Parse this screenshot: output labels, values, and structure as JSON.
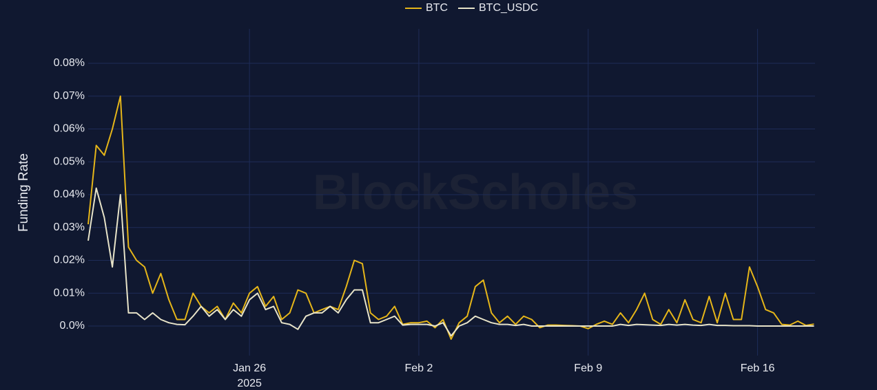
{
  "chart_data": {
    "type": "line",
    "y_label": "Funding Rate",
    "watermark": "BlockScholes",
    "x_year_label": "2025",
    "x": [
      "2025-01-19T08:00",
      "2025-01-19T16:00",
      "2025-01-20T00:00",
      "2025-01-20T08:00",
      "2025-01-20T16:00",
      "2025-01-21T00:00",
      "2025-01-21T08:00",
      "2025-01-21T16:00",
      "2025-01-22T00:00",
      "2025-01-22T08:00",
      "2025-01-22T16:00",
      "2025-01-23T00:00",
      "2025-01-23T08:00",
      "2025-01-23T16:00",
      "2025-01-24T00:00",
      "2025-01-24T08:00",
      "2025-01-24T16:00",
      "2025-01-25T00:00",
      "2025-01-25T08:00",
      "2025-01-25T16:00",
      "2025-01-26T00:00",
      "2025-01-26T08:00",
      "2025-01-26T16:00",
      "2025-01-27T00:00",
      "2025-01-27T08:00",
      "2025-01-27T16:00",
      "2025-01-28T00:00",
      "2025-01-28T08:00",
      "2025-01-28T16:00",
      "2025-01-29T00:00",
      "2025-01-29T08:00",
      "2025-01-29T16:00",
      "2025-01-30T00:00",
      "2025-01-30T08:00",
      "2025-01-30T16:00",
      "2025-01-31T00:00",
      "2025-01-31T08:00",
      "2025-01-31T16:00",
      "2025-02-01T00:00",
      "2025-02-01T08:00",
      "2025-02-01T16:00",
      "2025-02-02T00:00",
      "2025-02-02T08:00",
      "2025-02-02T16:00",
      "2025-02-03T00:00",
      "2025-02-03T08:00",
      "2025-02-03T16:00",
      "2025-02-04T00:00",
      "2025-02-04T08:00",
      "2025-02-04T16:00",
      "2025-02-05T00:00",
      "2025-02-05T08:00",
      "2025-02-05T16:00",
      "2025-02-06T00:00",
      "2025-02-06T08:00",
      "2025-02-06T16:00",
      "2025-02-07T00:00",
      "2025-02-07T08:00",
      "2025-02-07T16:00",
      "2025-02-08T00:00",
      "2025-02-08T08:00",
      "2025-02-08T16:00",
      "2025-02-09T00:00",
      "2025-02-09T08:00",
      "2025-02-09T16:00",
      "2025-02-10T00:00",
      "2025-02-10T08:00",
      "2025-02-10T16:00",
      "2025-02-11T00:00",
      "2025-02-11T08:00",
      "2025-02-11T16:00",
      "2025-02-12T00:00",
      "2025-02-12T08:00",
      "2025-02-12T16:00",
      "2025-02-13T00:00",
      "2025-02-13T08:00",
      "2025-02-13T16:00",
      "2025-02-14T00:00",
      "2025-02-14T08:00",
      "2025-02-14T16:00",
      "2025-02-15T00:00",
      "2025-02-15T08:00",
      "2025-02-15T16:00",
      "2025-02-16T00:00",
      "2025-02-16T08:00",
      "2025-02-16T16:00",
      "2025-02-17T00:00",
      "2025-02-17T08:00",
      "2025-02-17T16:00",
      "2025-02-18T00:00",
      "2025-02-18T08:00"
    ],
    "series": [
      {
        "name": "BTC",
        "color": "#e6b619",
        "values": [
          0.031,
          0.055,
          0.052,
          0.06,
          0.07,
          0.024,
          0.02,
          0.018,
          0.01,
          0.016,
          0.008,
          0.002,
          0.002,
          0.01,
          0.006,
          0.004,
          0.006,
          0.002,
          0.007,
          0.004,
          0.01,
          0.012,
          0.006,
          0.009,
          0.002,
          0.004,
          0.011,
          0.01,
          0.004,
          0.005,
          0.006,
          0.005,
          0.012,
          0.02,
          0.019,
          0.004,
          0.002,
          0.003,
          0.006,
          0.0005,
          0.001,
          0.001,
          0.0015,
          -0.0005,
          0.002,
          -0.004,
          0.001,
          0.003,
          0.012,
          0.014,
          0.004,
          0.001,
          0.003,
          0.0005,
          0.003,
          0.002,
          -0.0005,
          0.0003,
          0.0003,
          0.0002,
          0.0001,
          0,
          -0.0008,
          0.0005,
          0.0015,
          0.0005,
          0.004,
          0.001,
          0.005,
          0.01,
          0.002,
          0.0005,
          0.005,
          0.001,
          0.008,
          0.002,
          0.001,
          0.009,
          0.001,
          0.01,
          0.002,
          0.002,
          0.018,
          0.012,
          0.005,
          0.004,
          0.0005,
          0.0003,
          0.0015,
          0.0002,
          0.0006
        ]
      },
      {
        "name": "BTC_USDC",
        "color": "#e8e4c9",
        "values": [
          0.026,
          0.042,
          0.033,
          0.018,
          0.04,
          0.004,
          0.004,
          0.002,
          0.004,
          0.002,
          0.001,
          0.0005,
          0.0004,
          0.003,
          0.006,
          0.003,
          0.005,
          0.002,
          0.005,
          0.003,
          0.008,
          0.01,
          0.005,
          0.006,
          0.001,
          0.0005,
          -0.001,
          0.003,
          0.004,
          0.004,
          0.006,
          0.004,
          0.008,
          0.011,
          0.011,
          0.001,
          0.001,
          0.002,
          0.003,
          0.0003,
          0.0005,
          0.0005,
          0.0005,
          0,
          0.001,
          -0.003,
          0,
          0.001,
          0.003,
          0.002,
          0.001,
          0.0005,
          0.0005,
          0.0002,
          0.0005,
          0,
          0,
          0,
          0,
          0,
          0,
          0,
          0,
          0,
          0,
          0,
          0.0005,
          0.0002,
          0.0005,
          0.0004,
          0.0003,
          0.0002,
          0.0005,
          0.0003,
          0.0005,
          0.0003,
          0.0002,
          0.0005,
          0.0002,
          0.0002,
          0.0001,
          0.0001,
          0.0001,
          0,
          0,
          0,
          0,
          0,
          0,
          0,
          0
        ]
      }
    ],
    "xlim": [
      "2025-01-19T08:00",
      "2025-02-18T09:00"
    ],
    "xticks": [
      {
        "value": "2025-01-26",
        "label": "Jan 26"
      },
      {
        "value": "2025-02-02",
        "label": "Feb 2"
      },
      {
        "value": "2025-02-09",
        "label": "Feb 9"
      },
      {
        "value": "2025-02-16",
        "label": "Feb 16"
      }
    ],
    "ylim": [
      -0.009,
      0.09
    ],
    "yticks": [
      {
        "value": 0,
        "label": "0.0%"
      },
      {
        "value": 0.01,
        "label": "0.01%"
      },
      {
        "value": 0.02,
        "label": "0.02%"
      },
      {
        "value": 0.03,
        "label": "0.03%"
      },
      {
        "value": 0.04,
        "label": "0.04%"
      },
      {
        "value": 0.05,
        "label": "0.05%"
      },
      {
        "value": 0.06,
        "label": "0.06%"
      },
      {
        "value": 0.07,
        "label": "0.07%"
      },
      {
        "value": 0.08,
        "label": "0.08%"
      }
    ],
    "grid": true,
    "legend": "top"
  }
}
